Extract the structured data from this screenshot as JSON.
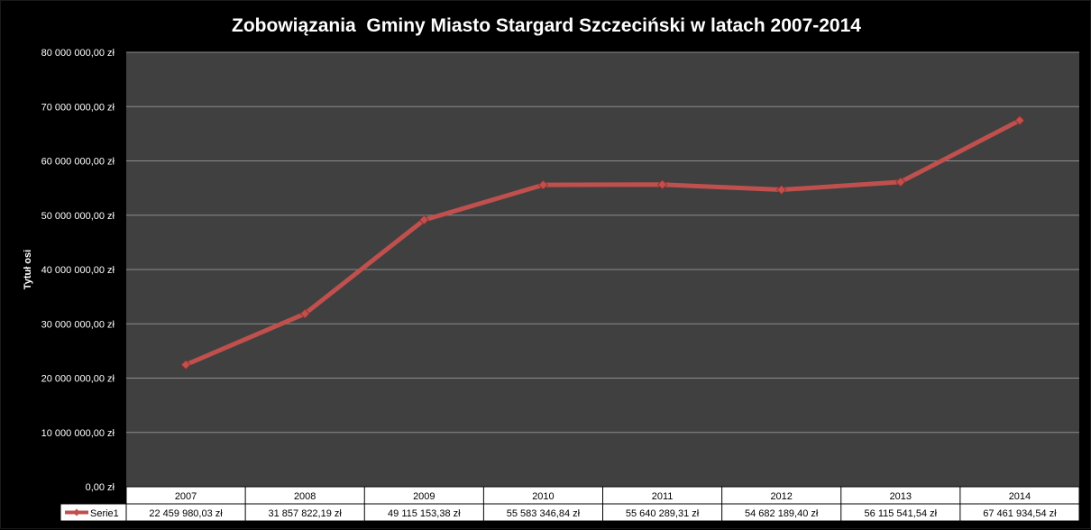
{
  "chart_data": {
    "type": "line",
    "title": "Zobowiązania  Gminy Miasto Stargard Szczeciński w latach 2007-2014",
    "ylabel": "Tytuł osi",
    "xlabel": "",
    "ylim": [
      0,
      80000000
    ],
    "y_ticks": [
      "0,00 zł",
      "10 000 000,00 zł",
      "20 000 000,00 zł",
      "30 000 000,00 zł",
      "40 000 000,00 zł",
      "50 000 000,00 zł",
      "60 000 000,00 zł",
      "70 000 000,00 zł",
      "80 000 000,00 zł"
    ],
    "categories": [
      "2007",
      "2008",
      "2009",
      "2010",
      "2011",
      "2012",
      "2013",
      "2014"
    ],
    "series": [
      {
        "name": "Serie1",
        "values": [
          22459980.03,
          31857822.19,
          49115153.38,
          55583346.84,
          55640289.31,
          54682189.4,
          56115541.54,
          67461934.54
        ],
        "labels": [
          "22 459 980,03 zł",
          "31 857 822,19 zł",
          "49 115 153,38 zł",
          "55 583 346,84 zł",
          "55 640 289,31 zł",
          "54 682 189,40 zł",
          "56 115 541,54 zł",
          "67 461 934,54 zł"
        ]
      }
    ],
    "grid": true,
    "data_table": true,
    "colors": {
      "background": "#000000",
      "plot_area": "#404040",
      "gridline": "#8c8c8c",
      "line": "#c0504d",
      "marker": "#c0504d",
      "text": "#ffffff",
      "table_bg": "#ffffff"
    }
  }
}
